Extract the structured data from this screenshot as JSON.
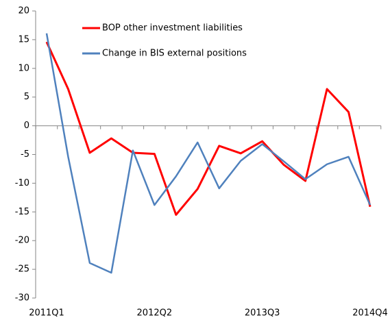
{
  "chart_data": {
    "type": "line",
    "x": [
      "2011Q1",
      null,
      null,
      null,
      null,
      "2012Q2",
      null,
      null,
      null,
      null,
      "2013Q3",
      null,
      null,
      null,
      null,
      "2014Q4"
    ],
    "series": [
      {
        "name": "BOP other investment liabilities",
        "color": "#ff0000",
        "values": [
          14.6,
          6.4,
          -4.7,
          -2.2,
          -4.7,
          -4.9,
          -15.5,
          -11,
          -3.5,
          -4.8,
          -2.7,
          -6.8,
          -9.6,
          6.4,
          2.4,
          -14.1
        ]
      },
      {
        "name": "Change in BIS external positions",
        "color": "#4f81bd",
        "values": [
          16.1,
          -5.4,
          -23.9,
          -25.6,
          -4.3,
          -13.8,
          -8.8,
          -2.9,
          -10.9,
          -6.1,
          -3.2,
          -6.2,
          -9.3,
          -6.7,
          -5.4,
          -13.8
        ]
      }
    ],
    "ylim": [
      -30,
      20
    ],
    "yticks": [
      -30,
      -25,
      -20,
      -15,
      -10,
      -5,
      0,
      5,
      10,
      15,
      20
    ],
    "legend": "upper-left",
    "grid": false
  }
}
